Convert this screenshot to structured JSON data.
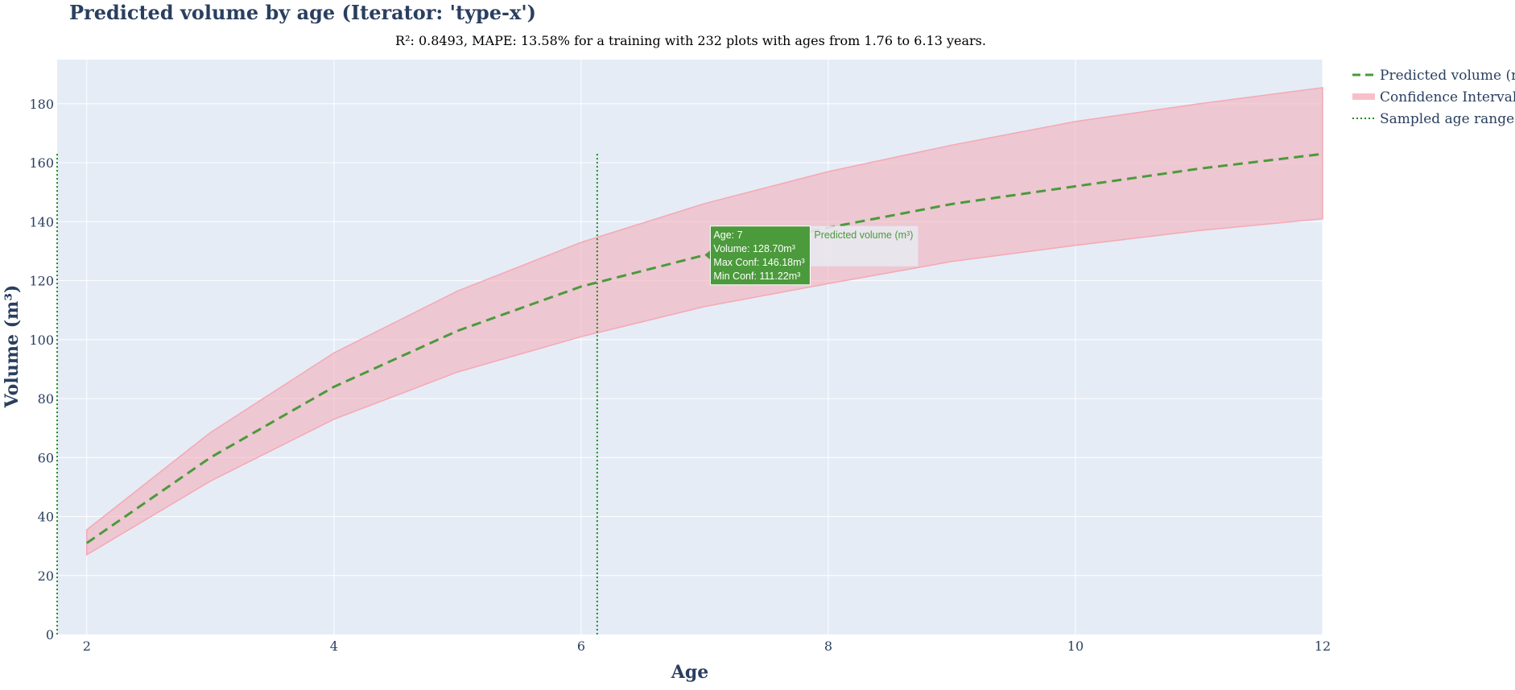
{
  "chart_data": {
    "type": "line",
    "title": "Predicted volume by age (Iterator: 'type-x')",
    "subtitle": "R²: 0.8493, MAPE: 13.58% for a training with 232 plots with ages from 1.76 to 6.13 years.",
    "xlabel": "Age",
    "ylabel": "Volume (m³)",
    "xlim": [
      1.76,
      12
    ],
    "ylim": [
      0,
      195
    ],
    "x_ticks": [
      2,
      4,
      6,
      8,
      10,
      12
    ],
    "y_ticks": [
      0,
      20,
      40,
      60,
      80,
      100,
      120,
      140,
      160,
      180
    ],
    "grid": true,
    "legend_position": "right",
    "x": [
      2,
      3,
      4,
      5,
      6,
      7,
      8,
      9,
      10,
      11,
      12
    ],
    "series": [
      {
        "name": "Predicted volume (m³)",
        "style": "dashed",
        "color": "#4b9a3b",
        "values": [
          31,
          60,
          84,
          103,
          118,
          128.7,
          138,
          146,
          152,
          158,
          163
        ]
      },
      {
        "name": "Confidence Interval",
        "style": "band",
        "color": "#f4a9b4",
        "upper": [
          35.5,
          68.5,
          95.5,
          116.5,
          133,
          146.18,
          157,
          166,
          174,
          180,
          185.5
        ],
        "lower": [
          27,
          52,
          73,
          89,
          101,
          111.22,
          119,
          126.5,
          132,
          137,
          141
        ]
      },
      {
        "name": "Sampled age range",
        "style": "dotted",
        "color": "#1a8a1a",
        "x_values": [
          1.76,
          6.13
        ],
        "y_top": 163
      }
    ],
    "hover": {
      "lines": [
        "Age: 7",
        "Volume: 128.70m³",
        "Max Conf: 146.18m³",
        "Min Conf: 111.22m³"
      ],
      "trace_name": "Predicted volume (m³)",
      "x": 7,
      "y": 128.7
    }
  }
}
